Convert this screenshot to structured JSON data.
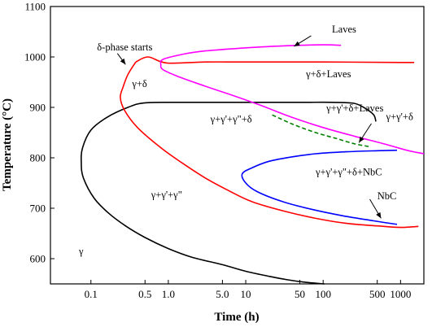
{
  "chart_data": {
    "type": "line",
    "xlabel": "Time (h)",
    "ylabel": "Temperature (°C)",
    "x_scale": "log",
    "xlim": [
      0.03,
      2000
    ],
    "ylim": [
      550,
      1100
    ],
    "grid": false,
    "x_tick_values": [
      0.1,
      0.5,
      1.0,
      5.0,
      10,
      50,
      100,
      500,
      1000
    ],
    "x_tick_labels": [
      "0.1",
      "0.5",
      "1.0",
      "5.0",
      "10",
      "50",
      "100",
      "500",
      "1000"
    ],
    "y_tick_values": [
      600,
      700,
      800,
      900,
      1000,
      1100
    ],
    "y_tick_labels": [
      "600",
      "700",
      "800",
      "900",
      "1000",
      "1100"
    ],
    "series": [
      {
        "key": "gamma-pp",
        "color": "#000000",
        "dashed": false,
        "points": [
          [
            104,
            550
          ],
          [
            60,
            553
          ],
          [
            35,
            558
          ],
          [
            20,
            565
          ],
          [
            10,
            575
          ],
          [
            5,
            588
          ],
          [
            2,
            603
          ],
          [
            1,
            620
          ],
          [
            0.5,
            642
          ],
          [
            0.28,
            665
          ],
          [
            0.17,
            690
          ],
          [
            0.11,
            720
          ],
          [
            0.08,
            760
          ],
          [
            0.075,
            790
          ],
          [
            0.078,
            820
          ],
          [
            0.1,
            855
          ],
          [
            0.16,
            880
          ],
          [
            0.3,
            900
          ],
          [
            0.5,
            909
          ],
          [
            1.5,
            910
          ],
          [
            10,
            910
          ],
          [
            50,
            910
          ],
          [
            130,
            910
          ],
          [
            250,
            908
          ],
          [
            350,
            898
          ],
          [
            450,
            885
          ],
          [
            480,
            872
          ]
        ]
      },
      {
        "key": "delta",
        "color": "#ff0000",
        "dashed": false,
        "points": [
          [
            0.38,
            990
          ],
          [
            0.3,
            965
          ],
          [
            0.26,
            940
          ],
          [
            0.24,
            920
          ],
          [
            0.27,
            895
          ],
          [
            0.4,
            860
          ],
          [
            0.8,
            820
          ],
          [
            1.5,
            790
          ],
          [
            3,
            760
          ],
          [
            6,
            735
          ],
          [
            12,
            713
          ],
          [
            30,
            695
          ],
          [
            80,
            680
          ],
          [
            200,
            670
          ],
          [
            500,
            665
          ],
          [
            1000,
            662
          ],
          [
            1700,
            664
          ],
          [
            0.38,
            990
          ],
          [
            0.55,
            1000
          ],
          [
            0.95,
            988
          ],
          [
            3,
            990
          ],
          [
            10,
            990
          ],
          [
            100,
            990
          ],
          [
            1000,
            989
          ],
          [
            1500,
            989
          ]
        ]
      },
      {
        "key": "laves",
        "color": "#ff00ff",
        "dashed": false,
        "points": [
          [
            170,
            1023
          ],
          [
            100,
            1024
          ],
          [
            30,
            1022
          ],
          [
            10,
            1018
          ],
          [
            3,
            1012
          ],
          [
            1.5,
            1005
          ],
          [
            0.85,
            995
          ],
          [
            0.8,
            985
          ],
          [
            0.85,
            975
          ],
          [
            1.3,
            962
          ],
          [
            3,
            942
          ],
          [
            7,
            923
          ],
          [
            15,
            905
          ],
          [
            40,
            880
          ],
          [
            100,
            860
          ],
          [
            250,
            843
          ],
          [
            600,
            828
          ],
          [
            1200,
            815
          ],
          [
            2000,
            808
          ]
        ]
      },
      {
        "key": "gpd",
        "color": "#008000",
        "dashed": true,
        "points": [
          [
            22,
            885
          ],
          [
            40,
            867
          ],
          [
            80,
            850
          ],
          [
            150,
            838
          ],
          [
            250,
            828
          ],
          [
            400,
            822
          ]
        ]
      },
      {
        "key": "nbc",
        "color": "#0000ff",
        "dashed": false,
        "points": [
          [
            900,
            815
          ],
          [
            500,
            814
          ],
          [
            200,
            812
          ],
          [
            80,
            808
          ],
          [
            40,
            802
          ],
          [
            20,
            793
          ],
          [
            12,
            780
          ],
          [
            9,
            768
          ],
          [
            10,
            750
          ],
          [
            14,
            733
          ],
          [
            30,
            713
          ],
          [
            70,
            698
          ],
          [
            180,
            685
          ],
          [
            450,
            675
          ],
          [
            900,
            668
          ]
        ]
      }
    ],
    "annotations": [
      {
        "text": "Laves",
        "x": 130,
        "y": 1048
      },
      {
        "text": "δ-phase starts",
        "x": 0.12,
        "y": 1013
      },
      {
        "text": "γ+δ",
        "x": 0.34,
        "y": 940
      },
      {
        "text": "γ+δ+Laves",
        "x": 60,
        "y": 960
      },
      {
        "text": "γ+γ'+δ+Laves",
        "x": 110,
        "y": 892
      },
      {
        "text": "γ+γ'+γ\"+δ",
        "x": 3.5,
        "y": 870
      },
      {
        "text": "γ+γ'+δ",
        "x": 650,
        "y": 875
      },
      {
        "text": "γ+γ'+γ\"+δ+NbC",
        "x": 80,
        "y": 765
      },
      {
        "text": "γ+γ'+γ\"",
        "x": 0.6,
        "y": 720
      },
      {
        "text": "NbC",
        "x": 500,
        "y": 718
      },
      {
        "text": "γ",
        "x": 0.07,
        "y": 608
      }
    ],
    "arrows": [
      {
        "from": [
          70,
          1042
        ],
        "to": [
          42,
          1021
        ]
      },
      {
        "from": [
          0.22,
          1007
        ],
        "to": [
          0.28,
          985
        ]
      },
      {
        "from": [
          400,
          718
        ],
        "to": [
          560,
          680
        ]
      },
      {
        "from": [
          420,
          868
        ],
        "to": [
          290,
          830
        ]
      }
    ]
  }
}
